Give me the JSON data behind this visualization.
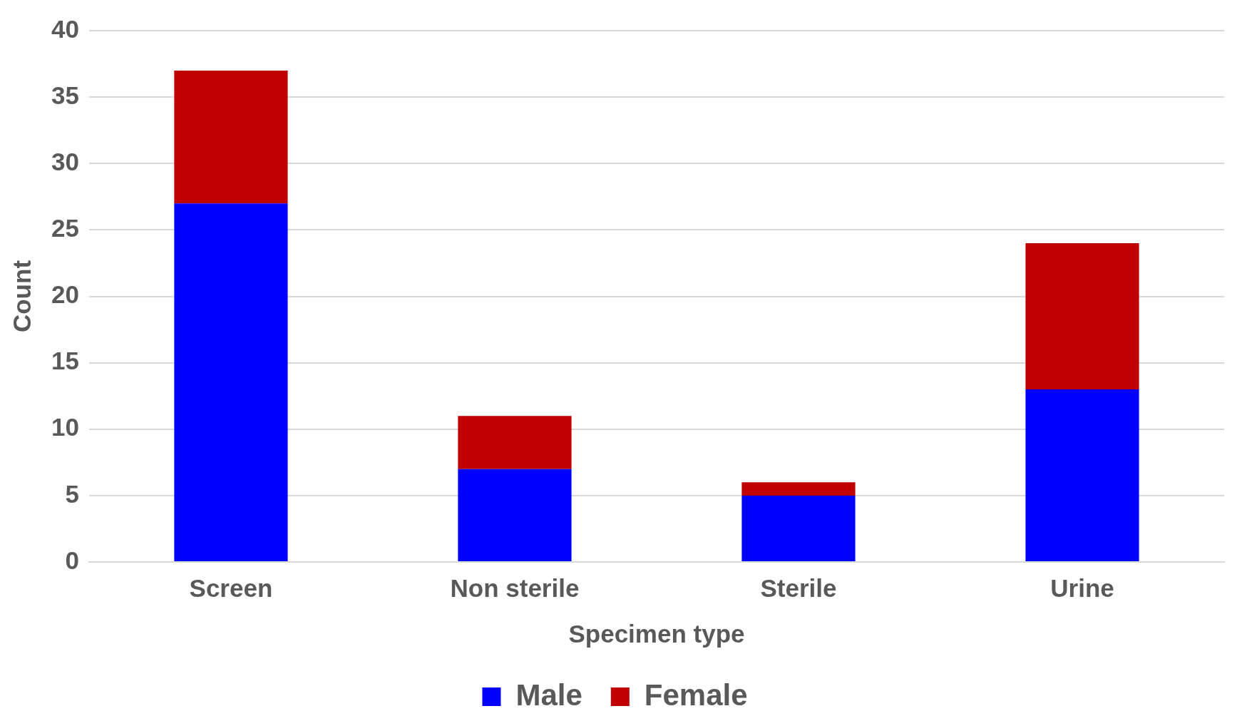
{
  "chart_data": {
    "type": "bar",
    "xlabel": "Specimen type",
    "ylabel": "Count",
    "categories": [
      "Screen",
      "Non sterile",
      "Sterile",
      "Urine"
    ],
    "series": [
      {
        "name": "Male",
        "color": "#0000ff",
        "values": [
          27,
          7,
          5,
          13
        ]
      },
      {
        "name": "Female",
        "color": "#c00000",
        "values": [
          10,
          4,
          1,
          11
        ]
      }
    ],
    "stacked": true,
    "ylim": [
      0,
      40
    ],
    "yticks": [
      0,
      5,
      10,
      15,
      20,
      25,
      30,
      35,
      40
    ],
    "grid": "y",
    "legend": "bottom"
  }
}
